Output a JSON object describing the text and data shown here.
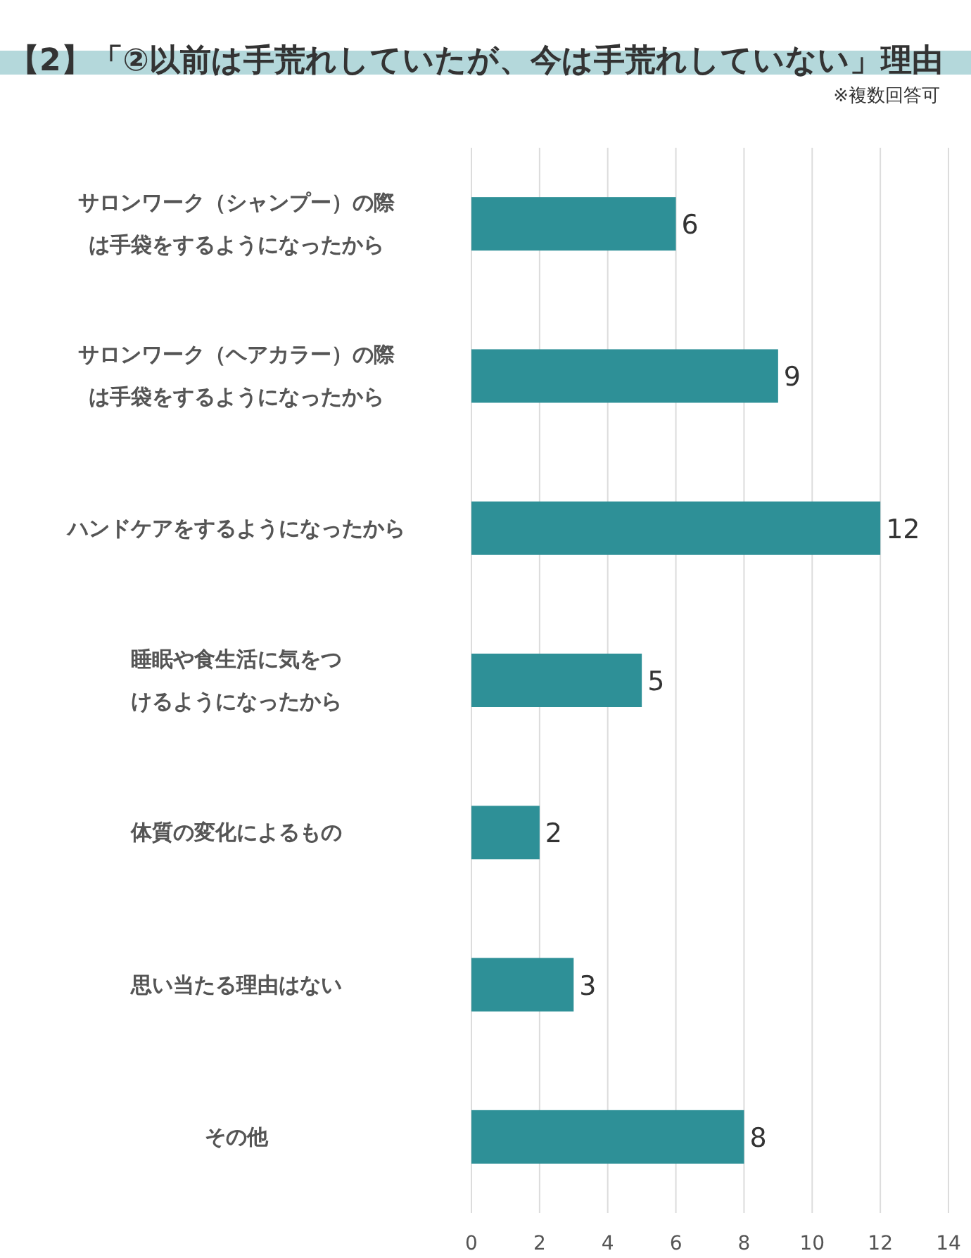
{
  "chart_data": {
    "type": "bar",
    "orientation": "horizontal",
    "title": "【2】「②以前は手荒れしていたが、今は手荒れしていない」理由",
    "subtitle": "※複数回答可",
    "categories": [
      "サロンワーク（シャンプー）の際は手袋をするようになったから",
      "サロンワーク（ヘアカラー）の際は手袋をするようになったから",
      "ハンドケアをするようになったから",
      "睡眠や食生活に気をつけるようになったから",
      "体質の変化によるもの",
      "思い当たる理由はない",
      "その他"
    ],
    "values": [
      6,
      9,
      12,
      5,
      2,
      3,
      8
    ],
    "color": "#2e9097",
    "xlim": [
      0,
      14
    ],
    "xticks": [
      0,
      2,
      4,
      6,
      8,
      10,
      12,
      14
    ],
    "grid": "x",
    "data_labels": true
  }
}
